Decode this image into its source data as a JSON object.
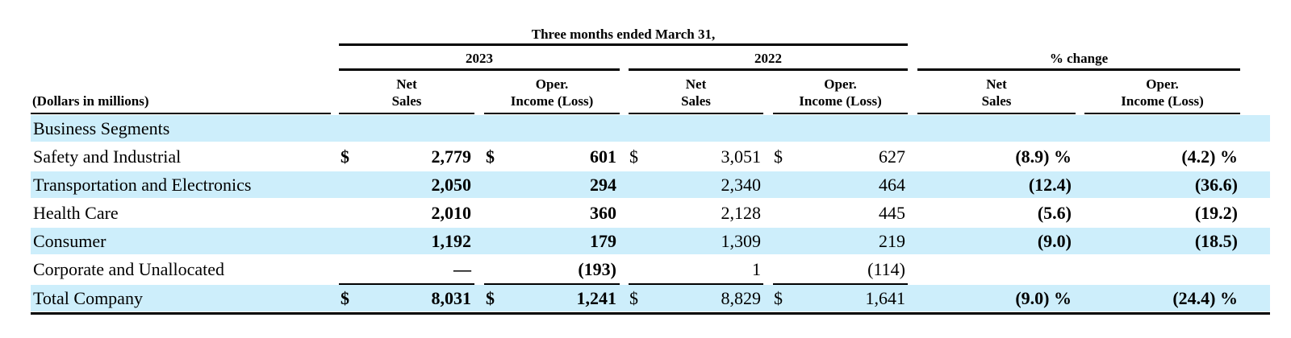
{
  "header": {
    "period": "Three months ended March 31,",
    "year_2023": "2023",
    "year_2022": "2022",
    "pct_change": "% change",
    "units": "(Dollars in millions)",
    "col_net_sales_1": "Net",
    "col_net_sales_2": "Sales",
    "col_oper_1": "Oper.",
    "col_oper_2": "Income (Loss)"
  },
  "rows": [
    {
      "label": "Business Segments",
      "sales23_cur": "",
      "sales23": "",
      "oper23_cur": "",
      "oper23": "",
      "sales22_cur": "",
      "sales22": "",
      "oper22_cur": "",
      "oper22": "",
      "pct_sales": "",
      "pct_oper": ""
    },
    {
      "label": "Safety and Industrial",
      "sales23_cur": "$",
      "sales23": "2,779",
      "oper23_cur": "$",
      "oper23": "601",
      "sales22_cur": "$",
      "sales22": "3,051",
      "oper22_cur": "$",
      "oper22": "627",
      "pct_sales": "(8.9) %",
      "pct_oper": "(4.2) %"
    },
    {
      "label": "Transportation and Electronics",
      "sales23_cur": "",
      "sales23": "2,050",
      "oper23_cur": "",
      "oper23": "294",
      "sales22_cur": "",
      "sales22": "2,340",
      "oper22_cur": "",
      "oper22": "464",
      "pct_sales": "(12.4)",
      "pct_oper": "(36.6)"
    },
    {
      "label": "Health Care",
      "sales23_cur": "",
      "sales23": "2,010",
      "oper23_cur": "",
      "oper23": "360",
      "sales22_cur": "",
      "sales22": "2,128",
      "oper22_cur": "",
      "oper22": "445",
      "pct_sales": "(5.6)",
      "pct_oper": "(19.2)"
    },
    {
      "label": "Consumer",
      "sales23_cur": "",
      "sales23": "1,192",
      "oper23_cur": "",
      "oper23": "179",
      "sales22_cur": "",
      "sales22": "1,309",
      "oper22_cur": "",
      "oper22": "219",
      "pct_sales": "(9.0)",
      "pct_oper": "(18.5)"
    },
    {
      "label": "Corporate and Unallocated",
      "sales23_cur": "",
      "sales23": "—",
      "oper23_cur": "",
      "oper23": "(193)",
      "sales22_cur": "",
      "sales22": "1",
      "oper22_cur": "",
      "oper22": "(114)",
      "pct_sales": "",
      "pct_oper": ""
    },
    {
      "label": "Total Company",
      "sales23_cur": "$",
      "sales23": "8,031",
      "oper23_cur": "$",
      "oper23": "1,241",
      "sales22_cur": "$",
      "sales22": "8,829",
      "oper22_cur": "$",
      "oper22": "1,641",
      "pct_sales": "(9.0) %",
      "pct_oper": "(24.4) %"
    }
  ],
  "colors": {
    "row_shade": "#cdeefb",
    "text": "#000000"
  }
}
